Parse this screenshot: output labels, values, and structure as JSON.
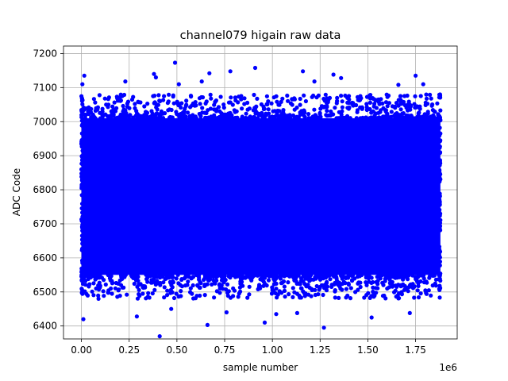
{
  "chart_data": {
    "type": "scatter",
    "title": "channel079 higain raw data",
    "xlabel": "sample number",
    "ylabel": "ADC Code",
    "x_offset_label": "1e6",
    "x_ticks": [
      0.0,
      0.25,
      0.5,
      0.75,
      1.0,
      1.25,
      1.5,
      1.75
    ],
    "x_tick_labels": [
      "0.00",
      "0.25",
      "0.50",
      "0.75",
      "1.00",
      "1.25",
      "1.50",
      "1.75"
    ],
    "y_ticks": [
      6400,
      6500,
      6600,
      6700,
      6800,
      6900,
      7000,
      7100,
      7200
    ],
    "y_tick_labels": [
      "6400",
      "6500",
      "6600",
      "6700",
      "6800",
      "6900",
      "7000",
      "7100",
      "7200"
    ],
    "xlim": [
      -0.094,
      1.968
    ],
    "ylim": [
      6362,
      7222
    ],
    "grid": true,
    "marker_color": "#0000ff",
    "series": [
      {
        "x_range": [
          0.0,
          1.88
        ],
        "dense_y_range": [
          6550,
          7010
        ],
        "band_y_range": [
          6480,
          7080
        ],
        "outliers": [
          {
            "x": 0.005,
            "y": 7110
          },
          {
            "x": 0.015,
            "y": 7135
          },
          {
            "x": 0.01,
            "y": 6420
          },
          {
            "x": 0.23,
            "y": 7118
          },
          {
            "x": 0.38,
            "y": 7140
          },
          {
            "x": 0.39,
            "y": 7130
          },
          {
            "x": 0.41,
            "y": 6370
          },
          {
            "x": 0.49,
            "y": 7173
          },
          {
            "x": 0.51,
            "y": 7110
          },
          {
            "x": 0.63,
            "y": 7118
          },
          {
            "x": 0.67,
            "y": 7142
          },
          {
            "x": 0.66,
            "y": 6403
          },
          {
            "x": 0.78,
            "y": 7148
          },
          {
            "x": 0.91,
            "y": 7158
          },
          {
            "x": 0.96,
            "y": 6410
          },
          {
            "x": 1.16,
            "y": 7148
          },
          {
            "x": 1.22,
            "y": 7118
          },
          {
            "x": 1.27,
            "y": 6395
          },
          {
            "x": 1.32,
            "y": 7138
          },
          {
            "x": 1.36,
            "y": 7128
          },
          {
            "x": 1.52,
            "y": 6425
          },
          {
            "x": 1.66,
            "y": 7108
          },
          {
            "x": 1.75,
            "y": 7135
          },
          {
            "x": 1.79,
            "y": 7110
          },
          {
            "x": 0.29,
            "y": 6428
          },
          {
            "x": 0.47,
            "y": 6450
          },
          {
            "x": 1.02,
            "y": 6435
          },
          {
            "x": 1.13,
            "y": 6438
          },
          {
            "x": 1.72,
            "y": 6438
          },
          {
            "x": 0.76,
            "y": 6440
          }
        ]
      }
    ]
  }
}
